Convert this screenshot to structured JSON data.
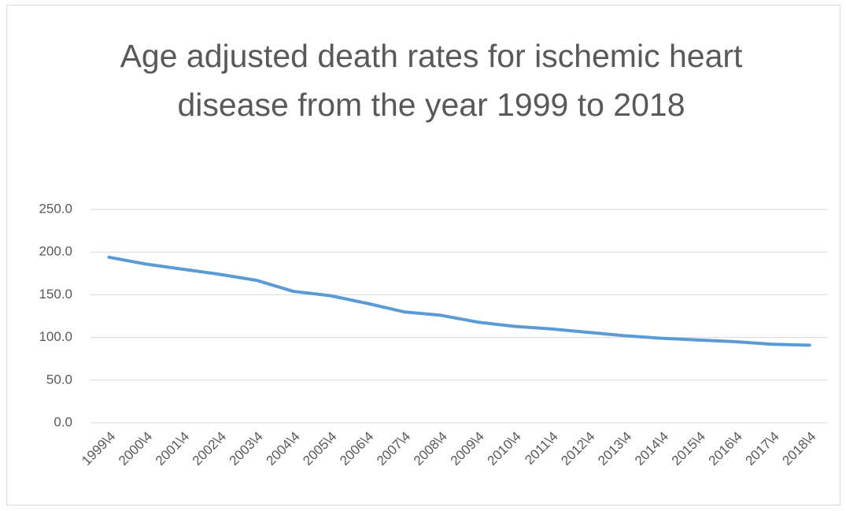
{
  "chart_data": {
    "type": "line",
    "title": "Age adjusted death rates for ischemic heart disease from the year 1999 to 2018",
    "categories": [
      "1999\\4",
      "2000\\4",
      "2001\\4",
      "2002\\4",
      "2003\\4",
      "2004\\4",
      "2005\\4",
      "2006\\4",
      "2007\\4",
      "2008\\4",
      "2009\\4",
      "2010\\4",
      "2011\\4",
      "2012\\4",
      "2013\\4",
      "2014\\4",
      "2015\\4",
      "2016\\4",
      "2017\\4",
      "2018\\4"
    ],
    "series": [
      {
        "name": "Age adjusted death rate",
        "color": "#5b9bd5",
        "values": [
          194,
          186,
          180,
          174,
          167,
          154,
          149,
          140,
          130,
          126,
          118,
          113,
          110,
          106,
          102,
          99,
          97,
          95,
          92,
          91
        ]
      }
    ],
    "ylim": [
      0,
      250
    ],
    "yticks": [
      {
        "value": 0,
        "label": "0.0"
      },
      {
        "value": 50,
        "label": "50.0"
      },
      {
        "value": 100,
        "label": "100.0"
      },
      {
        "value": 150,
        "label": "150.0"
      },
      {
        "value": 200,
        "label": "200.0"
      },
      {
        "value": 250,
        "label": "250.0"
      }
    ],
    "grid": true
  }
}
